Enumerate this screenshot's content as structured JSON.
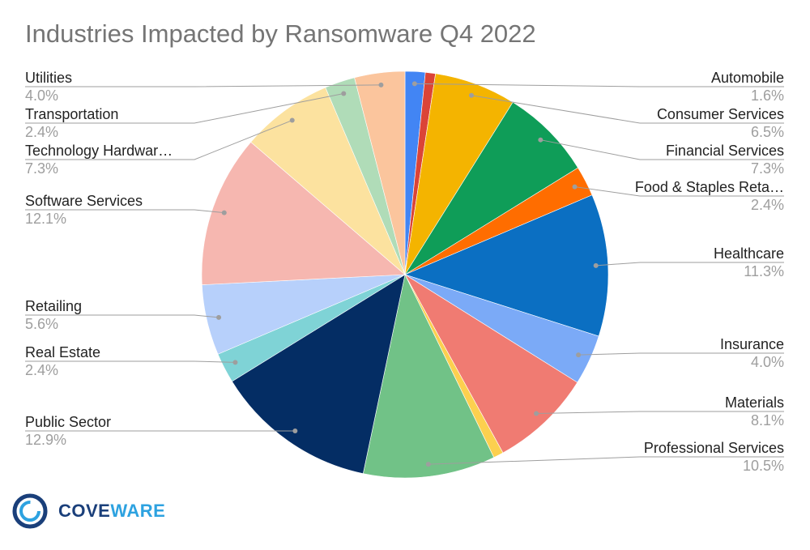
{
  "chart_data": {
    "type": "pie",
    "title": "Industries Impacted by Ransomware Q4 2022",
    "slices": [
      {
        "label": "Automobile",
        "pct_label": "1.6%",
        "value": 1.6,
        "color": "#4285f4"
      },
      {
        "label": "",
        "pct_label": "",
        "value": 0.8,
        "color": "#db4437"
      },
      {
        "label": "Consumer Services",
        "pct_label": "6.5%",
        "value": 6.5,
        "color": "#f4b400"
      },
      {
        "label": "Financial Services",
        "pct_label": "7.3%",
        "value": 7.3,
        "color": "#0f9d58"
      },
      {
        "label": "Food & Staples Reta…",
        "pct_label": "2.4%",
        "value": 2.4,
        "color": "#ff6d00"
      },
      {
        "label": "Healthcare",
        "pct_label": "11.3%",
        "value": 11.3,
        "color": "#0b6fc2"
      },
      {
        "label": "Insurance",
        "pct_label": "4.0%",
        "value": 4.0,
        "color": "#7baaf7"
      },
      {
        "label": "Materials",
        "pct_label": "8.1%",
        "value": 8.1,
        "color": "#f07b72"
      },
      {
        "label": "",
        "pct_label": "",
        "value": 0.8,
        "color": "#fcd04f"
      },
      {
        "label": "Professional Services",
        "pct_label": "10.5%",
        "value": 10.5,
        "color": "#71c287"
      },
      {
        "label": "Public Sector",
        "pct_label": "12.9%",
        "value": 12.9,
        "color": "#042d64"
      },
      {
        "label": "Real Estate",
        "pct_label": "2.4%",
        "value": 2.4,
        "color": "#7fd3d6"
      },
      {
        "label": "Retailing",
        "pct_label": "5.6%",
        "value": 5.6,
        "color": "#b7d0fb"
      },
      {
        "label": "Software Services",
        "pct_label": "12.1%",
        "value": 12.1,
        "color": "#f6b7b0"
      },
      {
        "label": "Technology Hardwar…",
        "pct_label": "7.3%",
        "value": 7.3,
        "color": "#fce29f"
      },
      {
        "label": "Transportation",
        "pct_label": "2.4%",
        "value": 2.4,
        "color": "#b0dcb8"
      },
      {
        "label": "Utilities",
        "pct_label": "4.0%",
        "value": 4.0,
        "color": "#fbc59d"
      }
    ],
    "legend": "callout labels on both sides",
    "leader_line_color": "#9e9e9e"
  },
  "logo": {
    "text": "COVEWARE",
    "colors": {
      "COVE": "#1a3f7a",
      "WARE": "#2da2e0"
    }
  }
}
